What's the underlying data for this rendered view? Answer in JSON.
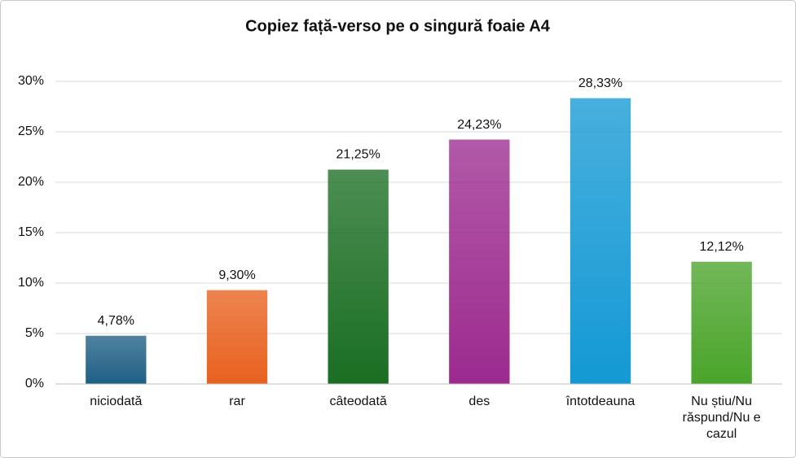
{
  "chart_data": {
    "type": "bar",
    "title": "Copiez față-verso pe o singură foaie A4",
    "categories": [
      "niciodată",
      "rar",
      "câteodată",
      "des",
      "întotdeauna",
      "Nu știu/Nu răspund/Nu e cazul"
    ],
    "values": [
      4.78,
      9.3,
      21.25,
      24.23,
      28.33,
      12.12
    ],
    "value_labels": [
      "4,78%",
      "9,30%",
      "21,25%",
      "24,23%",
      "28,33%",
      "12,12%"
    ],
    "colors": [
      "#1f5f85",
      "#e8611f",
      "#1a6e22",
      "#9c2a8f",
      "#1499d4",
      "#4aa42a"
    ],
    "ylim": [
      0,
      30
    ],
    "yticks": [
      {
        "value": 0,
        "label": "0%"
      },
      {
        "value": 5,
        "label": "5%"
      },
      {
        "value": 10,
        "label": "10%"
      },
      {
        "value": 15,
        "label": "15%"
      },
      {
        "value": 20,
        "label": "20%"
      },
      {
        "value": 25,
        "label": "25%"
      },
      {
        "value": 30,
        "label": "30%"
      }
    ],
    "grid": true
  }
}
